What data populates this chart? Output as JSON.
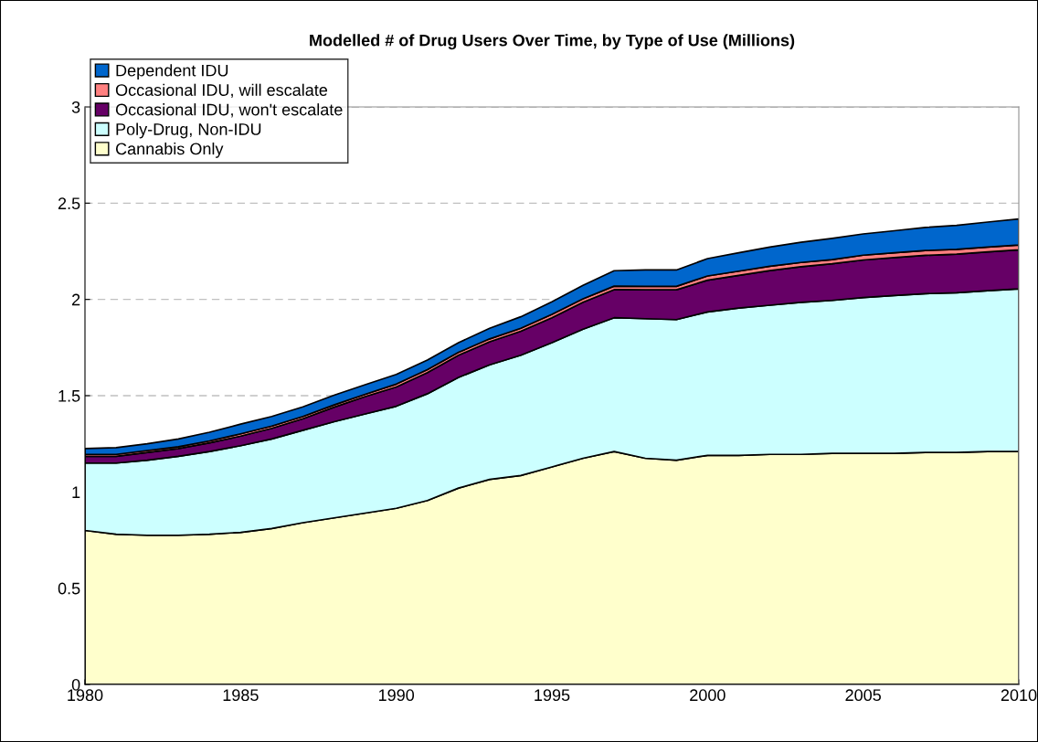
{
  "chart_data": {
    "type": "area",
    "stacked": true,
    "title": "Modelled # of Drug Users Over Time, by Type of Use (Millions)",
    "x": [
      1980,
      1981,
      1982,
      1983,
      1984,
      1985,
      1986,
      1987,
      1988,
      1989,
      1990,
      1991,
      1992,
      1993,
      1994,
      1995,
      1996,
      1997,
      1998,
      1999,
      2000,
      2001,
      2002,
      2003,
      2004,
      2005,
      2006,
      2007,
      2008,
      2009,
      2010
    ],
    "series": [
      {
        "name": "Cannabis Only",
        "color": "#ffffcc",
        "values": [
          0.8,
          0.78,
          0.775,
          0.775,
          0.78,
          0.79,
          0.81,
          0.84,
          0.865,
          0.89,
          0.915,
          0.955,
          1.02,
          1.065,
          1.085,
          1.13,
          1.175,
          1.21,
          1.175,
          1.165,
          1.19,
          1.19,
          1.195,
          1.195,
          1.2,
          1.2,
          1.2,
          1.205,
          1.205,
          1.21,
          1.21
        ]
      },
      {
        "name": "Poly-Drug, Non-IDU",
        "color": "#ccffff",
        "values": [
          0.35,
          0.37,
          0.39,
          0.41,
          0.43,
          0.45,
          0.465,
          0.48,
          0.5,
          0.515,
          0.53,
          0.555,
          0.575,
          0.595,
          0.625,
          0.645,
          0.67,
          0.695,
          0.725,
          0.73,
          0.745,
          0.765,
          0.775,
          0.79,
          0.795,
          0.81,
          0.82,
          0.825,
          0.83,
          0.835,
          0.845
        ]
      },
      {
        "name": "Occasional IDU, won't escalate",
        "color": "#660066",
        "values": [
          0.035,
          0.035,
          0.04,
          0.04,
          0.045,
          0.05,
          0.055,
          0.06,
          0.075,
          0.09,
          0.1,
          0.11,
          0.115,
          0.12,
          0.125,
          0.13,
          0.14,
          0.146,
          0.15,
          0.155,
          0.165,
          0.17,
          0.18,
          0.185,
          0.19,
          0.195,
          0.197,
          0.199,
          0.2,
          0.202,
          0.203
        ]
      },
      {
        "name": "Occasional IDU, will escalate",
        "color": "#ff8080",
        "values": [
          0.01,
          0.01,
          0.01,
          0.01,
          0.01,
          0.012,
          0.012,
          0.012,
          0.012,
          0.012,
          0.015,
          0.015,
          0.015,
          0.015,
          0.015,
          0.018,
          0.018,
          0.018,
          0.018,
          0.018,
          0.022,
          0.022,
          0.022,
          0.022,
          0.022,
          0.025,
          0.025,
          0.025,
          0.025,
          0.025,
          0.025
        ]
      },
      {
        "name": "Dependent IDU",
        "color": "#0066cc",
        "values": [
          0.03,
          0.035,
          0.035,
          0.04,
          0.045,
          0.05,
          0.05,
          0.05,
          0.05,
          0.05,
          0.05,
          0.05,
          0.05,
          0.055,
          0.06,
          0.065,
          0.07,
          0.08,
          0.085,
          0.085,
          0.09,
          0.095,
          0.1,
          0.105,
          0.11,
          0.11,
          0.115,
          0.12,
          0.125,
          0.13,
          0.135
        ]
      }
    ],
    "xlim": [
      1980,
      2010
    ],
    "xticks": [
      1980,
      1985,
      1990,
      1995,
      2000,
      2005,
      2010
    ],
    "ylim": [
      0,
      3
    ],
    "yticks": [
      0,
      0.5,
      1,
      1.5,
      2,
      2.5,
      3
    ],
    "grid": "y",
    "legend": "top left"
  }
}
